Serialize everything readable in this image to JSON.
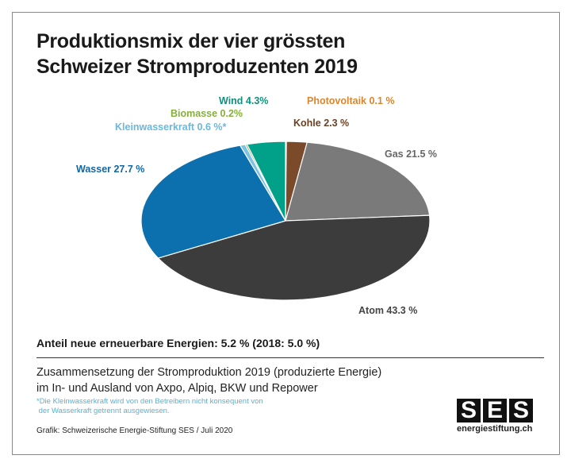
{
  "chart_data": {
    "type": "pie",
    "title": "Produktionsmix der vier grössten Schweizer Stromproduzenten 2019",
    "title_lines": [
      "Produktionsmix der vier grössten",
      "Schweizer Stromproduzenten 2019"
    ],
    "slices": [
      {
        "name": "Photovoltaik",
        "value": 0.1,
        "label": "Photovoltaik 0.1 %",
        "color": "#e0913a"
      },
      {
        "name": "Kohle",
        "value": 2.3,
        "label": "Kohle 2.3 %",
        "color": "#7b4a2b"
      },
      {
        "name": "Gas",
        "value": 21.5,
        "label": "Gas 21.5 %",
        "color": "#7a7a7a"
      },
      {
        "name": "Atom",
        "value": 43.3,
        "label": "Atom 43.3 %",
        "color": "#3c3c3c"
      },
      {
        "name": "Wasser",
        "value": 27.7,
        "label": "Wasser 27.7 %",
        "color": "#0b70ad"
      },
      {
        "name": "Kleinwasserkraft",
        "value": 0.6,
        "label": "Kleinwasserkraft 0.6 %*",
        "color": "#7cc3e3"
      },
      {
        "name": "Biomasse",
        "value": 0.2,
        "label": "Biomasse 0.2%",
        "color": "#8cb545"
      },
      {
        "name": "Wind",
        "value": 4.3,
        "label": "Wind 4.3%",
        "color": "#00a089"
      }
    ],
    "label_colors": {
      "Photovoltaik": "#d9862e",
      "Kohle": "#6b4024",
      "Gas": "#666666",
      "Atom": "#444444",
      "Wasser": "#1166a6",
      "Kleinwasserkraft": "#6bb8dc",
      "Biomasse": "#86b03c",
      "Wind": "#11907d"
    }
  },
  "renewables": "Anteil neue erneuerbare Energien:  5.2 % (2018: 5.0 %)",
  "description": [
    "Zusammensetzung der Stromproduktion 2019 (produzierte Energie)",
    "im In- und Ausland von Axpo, Alpiq, BKW und Repower"
  ],
  "footnote": [
    "*Die Kleinwasserkraft wird von den Betreibern nicht konsequent von",
    " der Wasserkraft getrennt ausgewiesen."
  ],
  "credit": "Grafik: Schweizerische Energie-Stiftung SES / Juli 2020",
  "logo": {
    "letters": [
      "S",
      "E",
      "S"
    ],
    "url": "energiestiftung.ch"
  }
}
